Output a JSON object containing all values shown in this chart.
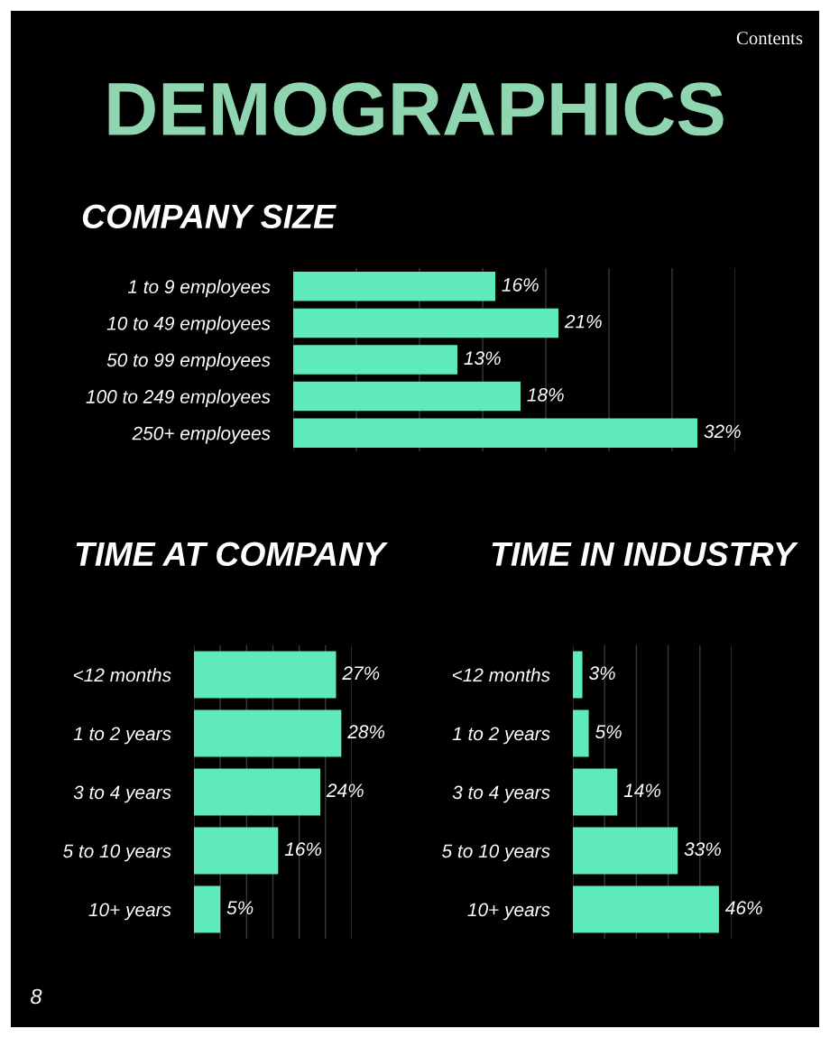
{
  "chart_data": [
    {
      "type": "bar",
      "title": "COMPANY SIZE",
      "orientation": "horizontal",
      "categories": [
        "1 to 9 employees",
        "10 to 49 employees",
        "50 to 99 employees",
        "100 to 249 employees",
        "250+ employees"
      ],
      "values": [
        16,
        21,
        13,
        18,
        32
      ],
      "value_labels": [
        "16%",
        "21%",
        "13%",
        "18%",
        "32%"
      ],
      "color": "#5eeabd",
      "xlim": [
        0,
        35
      ],
      "xticks": [
        {
          "value": 0,
          "label": null
        },
        {
          "value": 5,
          "label": null
        },
        {
          "value": 10,
          "label": null
        },
        {
          "value": 15,
          "label": null
        },
        {
          "value": 20,
          "label": null
        },
        {
          "value": 25,
          "label": null
        },
        {
          "value": 30,
          "label": null
        },
        {
          "value": 35,
          "label": null
        }
      ],
      "grid": "x",
      "tick_labels": "y",
      "annotations": [
        "DEMOGRAPHICS",
        "Contents",
        "8"
      ]
    },
    {
      "type": "bar",
      "title": "TIME AT COMPANY",
      "orientation": "horizontal",
      "categories": [
        "<12 months",
        "1 to 2 years",
        "3 to 4 years",
        "5 to 10 years",
        "10+ years"
      ],
      "values": [
        27,
        28,
        24,
        16,
        5
      ],
      "value_labels": [
        "27%",
        "28%",
        "24%",
        "16%",
        "5%"
      ],
      "color": "#5eeabd",
      "xlim": [
        0,
        30
      ],
      "xticks": [
        {
          "value": 0,
          "label": null
        },
        {
          "value": 5,
          "label": null
        },
        {
          "value": 10,
          "label": null
        },
        {
          "value": 15,
          "label": null
        },
        {
          "value": 20,
          "label": null
        },
        {
          "value": 25,
          "label": null
        },
        {
          "value": 30,
          "label": null
        }
      ],
      "grid": "x",
      "tick_labels": "y"
    },
    {
      "type": "bar",
      "title": "TIME IN INDUSTRY",
      "orientation": "horizontal",
      "categories": [
        "<12 months",
        "1 to 2 years",
        "3 to 4 years",
        "5 to 10 years",
        "10+ years"
      ],
      "values": [
        3,
        5,
        14,
        33,
        46
      ],
      "value_labels": [
        "3%",
        "5%",
        "14%",
        "33%",
        "46%"
      ],
      "color": "#5eeabd",
      "xlim": [
        0,
        50
      ],
      "xticks": [
        {
          "value": 0,
          "label": null
        },
        {
          "value": 10,
          "label": null
        },
        {
          "value": 20,
          "label": null
        },
        {
          "value": 30,
          "label": null
        },
        {
          "value": 40,
          "label": null
        },
        {
          "value": 50,
          "label": null
        }
      ],
      "grid": "x",
      "tick_labels": "y"
    }
  ]
}
